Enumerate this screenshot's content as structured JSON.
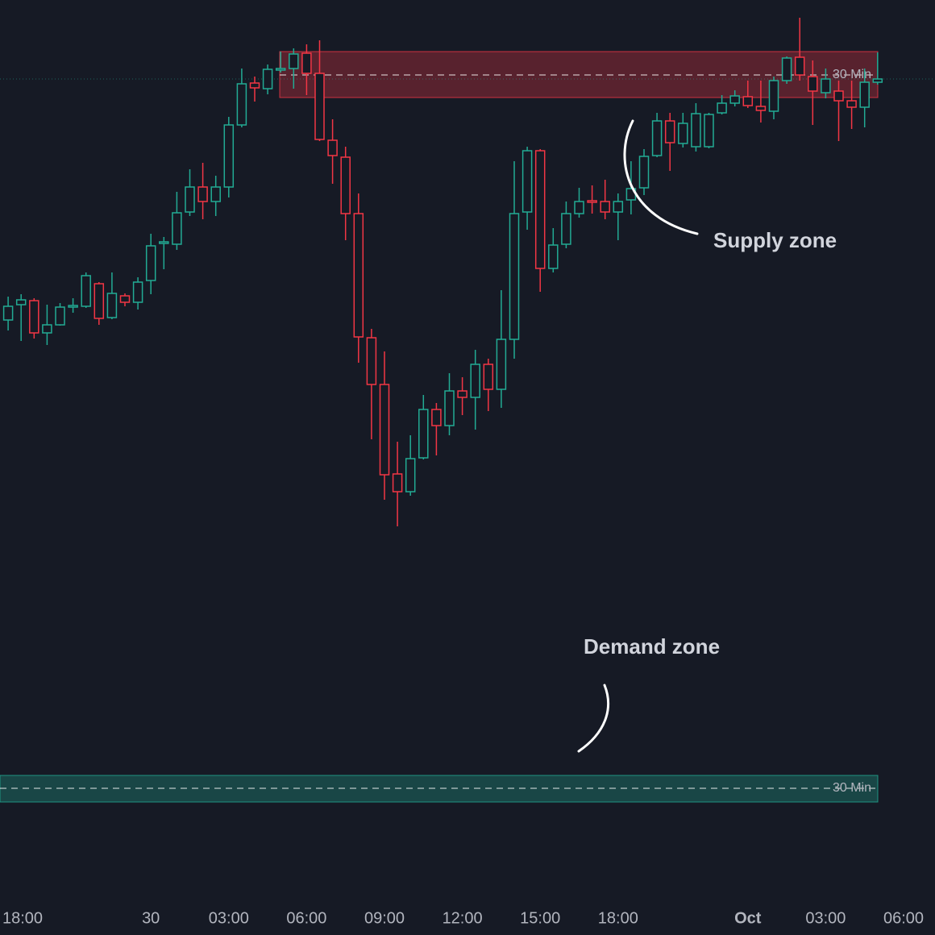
{
  "chart_data": {
    "type": "candlestick",
    "categories": [
      "18:00",
      null,
      null,
      null,
      null,
      null,
      null,
      null,
      null,
      null,
      null,
      null,
      "30",
      null,
      null,
      null,
      null,
      null,
      "03:00",
      null,
      null,
      null,
      null,
      null,
      "06:00",
      null,
      null,
      null,
      null,
      null,
      "09:00",
      null,
      null,
      null,
      null,
      null,
      "12:00",
      null,
      null,
      null,
      null,
      null,
      "15:00",
      null,
      null,
      null,
      null,
      null,
      "18:00",
      null,
      null,
      null,
      null,
      null,
      null,
      null,
      null,
      null,
      "Oct",
      null,
      null,
      null,
      null,
      null,
      "03:00",
      null,
      null,
      null,
      null,
      null,
      "06:00"
    ],
    "values": [
      null,
      [
        763,
        792,
        750,
        780
      ],
      [
        782,
        795,
        737,
        788
      ],
      [
        787,
        790,
        740,
        747
      ],
      [
        747,
        782,
        732,
        757
      ],
      [
        757,
        784,
        756,
        779
      ],
      [
        779,
        790,
        772,
        781
      ],
      [
        780,
        822,
        778,
        818
      ],
      [
        808,
        810,
        757,
        765
      ],
      [
        766,
        822,
        764,
        796
      ],
      [
        793,
        796,
        780,
        785
      ],
      [
        785,
        816,
        776,
        810
      ],
      [
        812,
        870,
        795,
        855
      ],
      [
        858,
        866,
        826,
        860
      ],
      [
        857,
        922,
        850,
        896
      ],
      [
        897,
        950,
        892,
        928
      ],
      [
        928,
        958,
        888,
        910
      ],
      [
        910,
        942,
        892,
        928
      ],
      [
        928,
        1015,
        915,
        1005
      ],
      [
        1005,
        1075,
        1002,
        1056
      ],
      [
        1057,
        1065,
        1034,
        1051
      ],
      [
        1050,
        1080,
        1043,
        1074
      ],
      [
        1073,
        1096,
        1070,
        1075
      ],
      [
        1075,
        1100,
        1050,
        1093
      ],
      [
        1094,
        1105,
        1042,
        1069
      ],
      [
        1069,
        1110,
        985,
        987
      ],
      [
        986,
        1012,
        932,
        967
      ],
      [
        965,
        978,
        862,
        895
      ],
      [
        895,
        920,
        710,
        742
      ],
      [
        741,
        752,
        615,
        683
      ],
      [
        683,
        724,
        540,
        571
      ],
      [
        572,
        612,
        507,
        550
      ],
      [
        550,
        620,
        545,
        591
      ],
      [
        592,
        670,
        590,
        652
      ],
      [
        652,
        660,
        595,
        632
      ],
      [
        632,
        697,
        620,
        675
      ],
      [
        675,
        692,
        645,
        667
      ],
      [
        667,
        726,
        627,
        708
      ],
      [
        708,
        715,
        650,
        677
      ],
      [
        677,
        800,
        654,
        739
      ],
      [
        739,
        960,
        715,
        895
      ],
      [
        897,
        978,
        875,
        973
      ],
      [
        973,
        975,
        798,
        827
      ],
      [
        827,
        877,
        822,
        856
      ],
      [
        857,
        910,
        852,
        895
      ],
      [
        895,
        927,
        890,
        910
      ],
      [
        911,
        930,
        895,
        909
      ],
      [
        910,
        937,
        888,
        897
      ],
      [
        897,
        920,
        862,
        910
      ],
      [
        912,
        960,
        894,
        926
      ],
      [
        927,
        975,
        918,
        966
      ],
      [
        967,
        1020,
        965,
        1010
      ],
      [
        1010,
        1020,
        948,
        983
      ],
      [
        982,
        1020,
        977,
        1007
      ],
      [
        978,
        1032,
        972,
        1019
      ],
      [
        978,
        1020,
        976,
        1018
      ],
      [
        1020,
        1042,
        1018,
        1032
      ],
      [
        1032,
        1048,
        1028,
        1041
      ],
      [
        1040,
        1060,
        1026,
        1029
      ],
      [
        1028,
        1060,
        1008,
        1023
      ],
      [
        1022,
        1065,
        1012,
        1060
      ],
      [
        1060,
        1090,
        1056,
        1088
      ],
      [
        1089,
        1138,
        1060,
        1067
      ],
      [
        1065,
        1085,
        1005,
        1047
      ],
      [
        1045,
        1075,
        1038,
        1062
      ],
      [
        1047,
        1060,
        985,
        1035
      ],
      [
        1035,
        1060,
        1000,
        1027
      ],
      [
        1027,
        1075,
        1002,
        1058
      ],
      [
        1058,
        1095,
        1055,
        1062
      ],
      null,
      null
    ],
    "up_color": "#22ab94",
    "down_color": "#f23645",
    "ylim": [
      0,
      1160
    ],
    "zones": [
      {
        "label": "30 Min",
        "top": 1096,
        "bottom": 1039,
        "middle": 1067,
        "color": "#f23645"
      },
      {
        "label": "30 Min",
        "top": 198,
        "bottom": 165,
        "middle": 182,
        "color": "#22ab94"
      }
    ],
    "annotations": [
      "Supply zone",
      "Demand zone"
    ]
  }
}
